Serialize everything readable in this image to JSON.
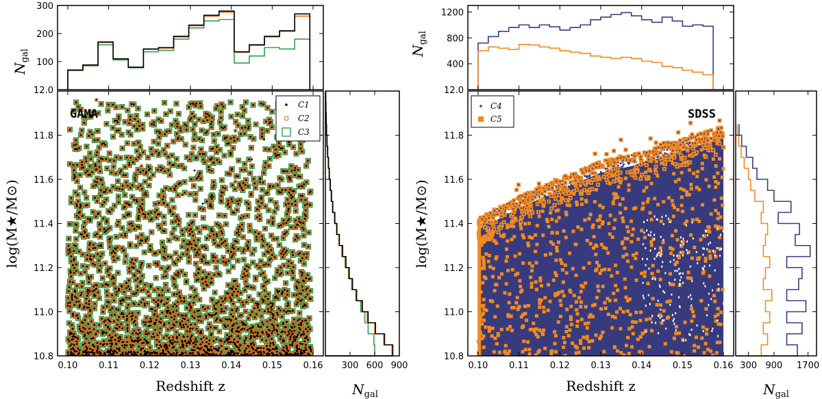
{
  "colors": {
    "c1": "#000000",
    "c2": "#e46c1b",
    "c3": "#2ca24d",
    "c4": "#373b7d",
    "c5": "#f28a1f",
    "frame": "#000000"
  },
  "chart_data": [
    {
      "id": "gama-top-hist",
      "type": "histogram-step",
      "xlim": [
        0.0975,
        0.1625
      ],
      "ylim": [
        0,
        300
      ],
      "yticks": [
        100,
        200,
        300
      ],
      "ylabel": "N",
      "ylabel_sub": "gal",
      "bin_edges": [
        0.1,
        0.1037,
        0.1074,
        0.1111,
        0.1148,
        0.1185,
        0.1222,
        0.1259,
        0.1296,
        0.1333,
        0.137,
        0.1407,
        0.1444,
        0.1481,
        0.1518,
        0.1555,
        0.1592
      ],
      "series": [
        {
          "name": "C1",
          "color": "#000000",
          "values": [
            70,
            88,
            170,
            110,
            80,
            145,
            150,
            190,
            230,
            265,
            280,
            135,
            160,
            190,
            210,
            270
          ]
        },
        {
          "name": "C2",
          "color": "#e46c1b",
          "values": [
            70,
            87,
            168,
            109,
            80,
            144,
            148,
            188,
            228,
            262,
            276,
            133,
            158,
            188,
            208,
            262
          ]
        },
        {
          "name": "C3",
          "color": "#2ca24d",
          "values": [
            68,
            85,
            160,
            106,
            78,
            135,
            140,
            180,
            220,
            245,
            250,
            95,
            120,
            150,
            145,
            180
          ]
        }
      ]
    },
    {
      "id": "gama-scatter",
      "type": "scatter",
      "panel_label": "GAMA",
      "xlim": [
        0.0975,
        0.1625
      ],
      "ylim": [
        10.8,
        12.0
      ],
      "xticks": [
        0.1,
        0.11,
        0.12,
        0.13,
        0.14,
        0.15,
        0.16
      ],
      "xticklabels": [
        "0.10",
        "0.11",
        "0.12",
        "0.13",
        "0.14",
        "0.15",
        "0.16"
      ],
      "yticks": [
        10.8,
        11.0,
        11.2,
        11.4,
        11.6,
        11.8,
        12.0
      ],
      "yticklabels": [
        "10.8",
        "11.0",
        "11.2",
        "11.4",
        "11.6",
        "11.8",
        "12.0"
      ],
      "xlabel": "Redshift z",
      "ylabel": "log(M★/M⊙)",
      "legend_position": "top-right",
      "legend": [
        {
          "label": "C1",
          "marker": "dot",
          "color": "#000000"
        },
        {
          "label": "C2",
          "marker": "open-circle",
          "color": "#e46c1b"
        },
        {
          "label": "C3",
          "marker": "open-square",
          "color": "#2ca24d"
        }
      ],
      "density_note": "Dense population at low mass, sparser toward log M = 12.0; green squares enclose orange circles enclose black dots; a few isolated black-only points above 11.6."
    },
    {
      "id": "gama-right-hist",
      "type": "histogram-step-horizontal",
      "xlim": [
        0,
        900
      ],
      "xticks": [
        300,
        600,
        900
      ],
      "xticklabels": [
        "300",
        "600",
        "900"
      ],
      "xlabel": "N",
      "xlabel_sub": "gal",
      "bin_edges": [
        10.8,
        10.85,
        10.9,
        10.95,
        11.0,
        11.05,
        11.1,
        11.15,
        11.2,
        11.25,
        11.3,
        11.35,
        11.4,
        11.45,
        11.5,
        11.55,
        11.6,
        11.65,
        11.7,
        11.75,
        11.8,
        11.85,
        11.9,
        11.95,
        12.0
      ],
      "series": [
        {
          "name": "C1",
          "color": "#000000",
          "values": [
            820,
            720,
            610,
            520,
            450,
            380,
            330,
            290,
            250,
            210,
            170,
            140,
            115,
            90,
            75,
            60,
            48,
            38,
            28,
            20,
            14,
            10,
            7,
            4
          ]
        },
        {
          "name": "C2",
          "color": "#e46c1b",
          "values": [
            810,
            710,
            600,
            510,
            440,
            372,
            325,
            285,
            245,
            205,
            166,
            137,
            112,
            88,
            73,
            58,
            46,
            36,
            27,
            19,
            13,
            9,
            6,
            4
          ]
        },
        {
          "name": "C3",
          "color": "#2ca24d",
          "values": [
            600,
            590,
            520,
            480,
            430,
            370,
            320,
            280,
            240,
            200,
            165,
            135,
            110,
            86,
            70,
            56,
            44,
            34,
            25,
            18,
            12,
            8,
            5,
            3
          ]
        }
      ]
    },
    {
      "id": "sdss-top-hist",
      "type": "histogram-step",
      "xlim": [
        0.0975,
        0.1625
      ],
      "ylim": [
        0,
        1300
      ],
      "yticks": [
        400,
        800,
        1200
      ],
      "ylabel": "N",
      "ylabel_sub": "gal",
      "bin_edges": [
        0.1,
        0.1025,
        0.105,
        0.1075,
        0.11,
        0.1125,
        0.115,
        0.1175,
        0.12,
        0.1225,
        0.125,
        0.1275,
        0.13,
        0.1325,
        0.135,
        0.1375,
        0.14,
        0.1425,
        0.145,
        0.1475,
        0.15,
        0.1525,
        0.155,
        0.1575
      ],
      "series": [
        {
          "name": "C4",
          "color": "#373b7d",
          "values": [
            720,
            820,
            900,
            960,
            1000,
            960,
            1000,
            970,
            920,
            960,
            1000,
            1080,
            1120,
            1160,
            1190,
            1140,
            1080,
            1040,
            1120,
            1060,
            980,
            1000,
            980
          ]
        },
        {
          "name": "C5",
          "color": "#f28a1f",
          "values": [
            600,
            660,
            640,
            620,
            700,
            690,
            660,
            640,
            600,
            580,
            560,
            520,
            500,
            480,
            500,
            480,
            440,
            420,
            360,
            340,
            300,
            270,
            230
          ]
        }
      ]
    },
    {
      "id": "sdss-scatter",
      "type": "scatter",
      "panel_label": "SDSS",
      "xlim": [
        0.0975,
        0.1625
      ],
      "ylim": [
        10.8,
        12.0
      ],
      "xticks": [
        0.1,
        0.11,
        0.12,
        0.13,
        0.14,
        0.15,
        0.16
      ],
      "xticklabels": [
        "0.10",
        "0.11",
        "0.12",
        "0.13",
        "0.14",
        "0.15",
        "0.16"
      ],
      "yticks": [
        10.8,
        11.0,
        11.2,
        11.4,
        11.6,
        11.8,
        12.0
      ],
      "yticklabels": [
        "10.8",
        "11.0",
        "11.2",
        "11.4",
        "11.6",
        "11.8",
        "12.0"
      ],
      "xlabel": "Redshift z",
      "ylabel": "log(M★/M⊙)",
      "legend_position": "top-left",
      "legend": [
        {
          "label": "C4",
          "marker": "dot",
          "color": "#373b7d"
        },
        {
          "label": "C5",
          "marker": "filled-square",
          "color": "#f28a1f"
        }
      ],
      "upper_envelope": {
        "z": [
          0.1,
          0.11,
          0.12,
          0.13,
          0.14,
          0.15,
          0.16
        ],
        "logM": [
          11.42,
          11.52,
          11.6,
          11.68,
          11.72,
          11.78,
          11.84
        ]
      },
      "density_note": "Dense navy dots filling region below an upper envelope rising from ~11.45 at z=0.10 to ~11.85 at z=0.16, orange squares along the envelope and scattered throughout."
    },
    {
      "id": "sdss-right-hist",
      "type": "histogram-step-horizontal",
      "xlim": [
        0,
        1900
      ],
      "xticks": [
        300,
        900,
        1700
      ],
      "xticklabels": [
        "300",
        "900",
        "1700"
      ],
      "xlabel": "N",
      "xlabel_sub": "gal",
      "bin_edges": [
        10.8,
        10.85,
        10.9,
        10.95,
        11.0,
        11.05,
        11.1,
        11.15,
        11.2,
        11.25,
        11.3,
        11.35,
        11.4,
        11.45,
        11.5,
        11.55,
        11.6,
        11.65,
        11.7,
        11.75,
        11.8,
        11.85
      ],
      "series": [
        {
          "name": "C4",
          "color": "#373b7d",
          "values": [
            1450,
            1200,
            1560,
            1200,
            1650,
            1200,
            1480,
            1560,
            1200,
            1750,
            1400,
            1500,
            1000,
            1300,
            900,
            750,
            500,
            400,
            250,
            140,
            80
          ]
        },
        {
          "name": "C5",
          "color": "#f28a1f",
          "values": [
            600,
            750,
            650,
            800,
            700,
            850,
            650,
            700,
            800,
            650,
            700,
            750,
            600,
            650,
            450,
            350,
            300,
            200,
            130,
            70,
            40
          ]
        }
      ]
    }
  ]
}
